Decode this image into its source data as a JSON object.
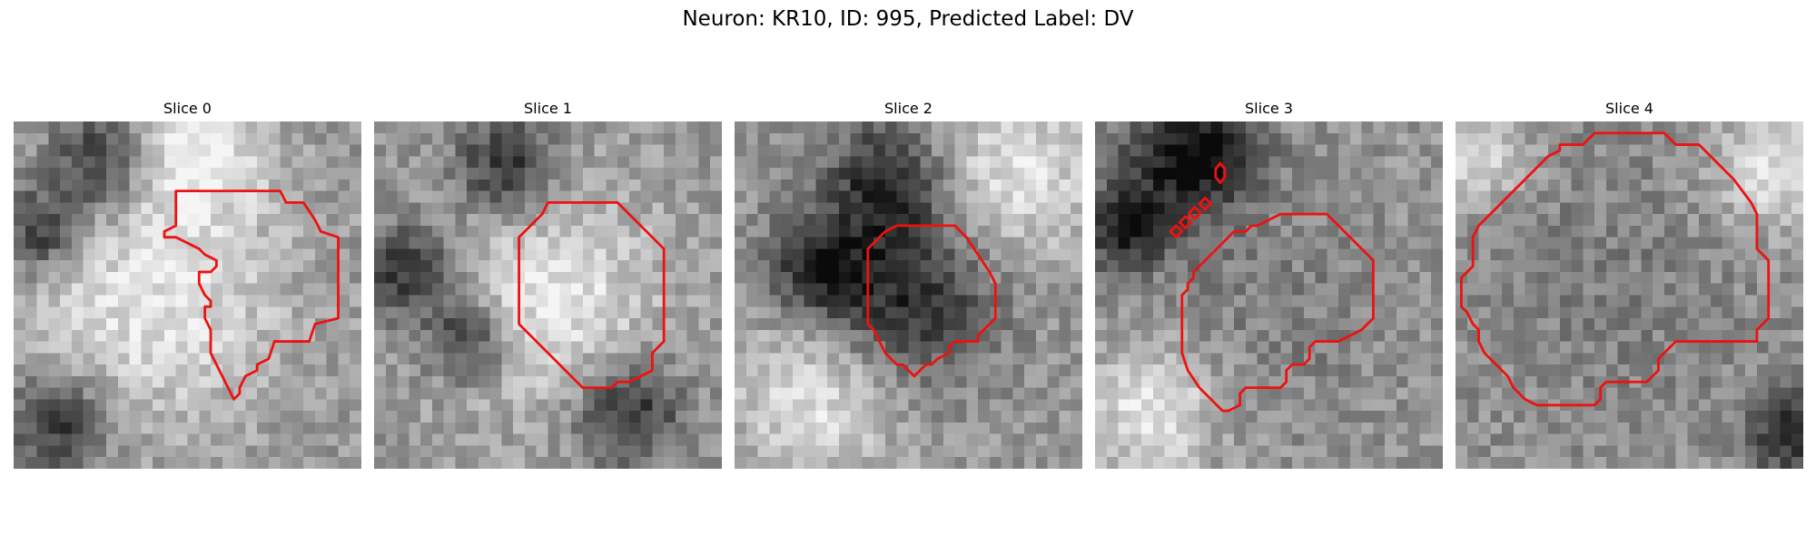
{
  "figure": {
    "title": "Neuron: KR10, ID: 995, Predicted Label: DV"
  },
  "colors": {
    "contour": "#ee1111"
  },
  "panels": [
    {
      "title": "Slice 0",
      "seed": 11,
      "features": [
        {
          "type": "dark",
          "cx": 7.5,
          "cy": 3.5,
          "r": 3.0
        },
        {
          "type": "dark",
          "cx": 2.5,
          "cy": 9.5,
          "r": 2.6
        },
        {
          "type": "dark",
          "cx": 4.0,
          "cy": 26.0,
          "r": 3.0
        },
        {
          "type": "bright",
          "cx": 12.0,
          "cy": 15.0,
          "r": 8.0
        },
        {
          "type": "bright",
          "cx": 16.0,
          "cy": 2.5,
          "r": 4.0
        }
      ],
      "contours": [
        [
          [
            14,
            6
          ],
          [
            23,
            6
          ],
          [
            23.5,
            7
          ],
          [
            25,
            7
          ],
          [
            26,
            8.5
          ],
          [
            26.5,
            9.5
          ],
          [
            28,
            10
          ],
          [
            28,
            17
          ],
          [
            26,
            17.5
          ],
          [
            25.5,
            19
          ],
          [
            22.5,
            19
          ],
          [
            22,
            20.5
          ],
          [
            21,
            21
          ],
          [
            21,
            21.5
          ],
          [
            20,
            22
          ],
          [
            19.5,
            23
          ],
          [
            19.5,
            23.5
          ],
          [
            19,
            24
          ],
          [
            18.5,
            23
          ],
          [
            18,
            22
          ],
          [
            17.5,
            21
          ],
          [
            17,
            20
          ],
          [
            17,
            18
          ],
          [
            16.5,
            17
          ],
          [
            16.5,
            16
          ],
          [
            17,
            16
          ],
          [
            17,
            15.5
          ],
          [
            16.5,
            15
          ],
          [
            16,
            14
          ],
          [
            16,
            13
          ],
          [
            17,
            13
          ],
          [
            17.5,
            12.5
          ],
          [
            17.5,
            12
          ],
          [
            16.5,
            11.5
          ],
          [
            16,
            11
          ],
          [
            14,
            10
          ],
          [
            13,
            10
          ],
          [
            13,
            9.5
          ],
          [
            14,
            9
          ]
        ]
      ]
    },
    {
      "title": "Slice 1",
      "seed": 23,
      "features": [
        {
          "type": "dark",
          "cx": 11.5,
          "cy": 4.0,
          "r": 3.2
        },
        {
          "type": "dark",
          "cx": 3.0,
          "cy": 13.0,
          "r": 3.0
        },
        {
          "type": "dark",
          "cx": 8.0,
          "cy": 19.0,
          "r": 2.5
        },
        {
          "type": "dark",
          "cx": 22.0,
          "cy": 25.0,
          "r": 3.2
        },
        {
          "type": "bright",
          "cx": 15.0,
          "cy": 15.0,
          "r": 7.0
        }
      ],
      "contours": [
        [
          [
            15,
            7
          ],
          [
            21,
            7
          ],
          [
            25,
            11
          ],
          [
            25,
            19
          ],
          [
            24,
            20
          ],
          [
            24,
            21.5
          ],
          [
            23,
            22
          ],
          [
            22,
            22.5
          ],
          [
            21,
            22.5
          ],
          [
            20.5,
            23
          ],
          [
            18,
            23
          ],
          [
            14,
            19
          ],
          [
            12.5,
            17.5
          ],
          [
            12.5,
            10
          ],
          [
            13.5,
            9
          ],
          [
            14,
            8.5
          ],
          [
            14.5,
            8
          ]
        ]
      ]
    },
    {
      "title": "Slice 2",
      "seed": 37,
      "features": [
        {
          "type": "dark",
          "cx": 13.0,
          "cy": 5.0,
          "r": 3.5
        },
        {
          "type": "dark",
          "cx": 7.0,
          "cy": 12.5,
          "r": 3.0
        },
        {
          "type": "dark",
          "cx": 15.0,
          "cy": 15.0,
          "r": 5.2
        },
        {
          "type": "bright",
          "cx": 7.0,
          "cy": 24.0,
          "r": 5.0
        },
        {
          "type": "bright",
          "cx": 24.0,
          "cy": 5.0,
          "r": 5.0
        }
      ],
      "contours": [
        [
          [
            14,
            9
          ],
          [
            19,
            9
          ],
          [
            20,
            10
          ],
          [
            21,
            11.5
          ],
          [
            22,
            13
          ],
          [
            22.5,
            14
          ],
          [
            22.5,
            17
          ],
          [
            22,
            17.5
          ],
          [
            21.5,
            18
          ],
          [
            21,
            18.5
          ],
          [
            21,
            19
          ],
          [
            19,
            19
          ],
          [
            18.5,
            19.5
          ],
          [
            18.5,
            20
          ],
          [
            17.5,
            20.5
          ],
          [
            17,
            21
          ],
          [
            16.5,
            21
          ],
          [
            16,
            21.5
          ],
          [
            15.5,
            22
          ],
          [
            15,
            21.5
          ],
          [
            14.5,
            21
          ],
          [
            14,
            21
          ],
          [
            13.5,
            20.5
          ],
          [
            13,
            20
          ],
          [
            12.5,
            19
          ],
          [
            12,
            18
          ],
          [
            11.5,
            17.5
          ],
          [
            11.5,
            11
          ],
          [
            12,
            10.5
          ],
          [
            12.5,
            10
          ],
          [
            13,
            9.5
          ]
        ]
      ]
    },
    {
      "title": "Slice 3",
      "seed": 41,
      "features": [
        {
          "type": "dark",
          "cx": 6.5,
          "cy": 5.5,
          "r": 4.5
        },
        {
          "type": "dark",
          "cx": 10.5,
          "cy": 2.5,
          "r": 3.0
        },
        {
          "type": "dark",
          "cx": 2.5,
          "cy": 10.0,
          "r": 2.0
        },
        {
          "type": "mid",
          "cx": 16.0,
          "cy": 16.0,
          "r": 7.5
        },
        {
          "type": "bright",
          "cx": 5.0,
          "cy": 25.0,
          "r": 4.0
        }
      ],
      "contours": [
        [
          [
            16,
            8
          ],
          [
            20,
            8
          ],
          [
            20.5,
            8.5
          ],
          [
            21,
            9
          ],
          [
            22,
            10
          ],
          [
            23,
            11
          ],
          [
            24,
            12
          ],
          [
            24,
            17
          ],
          [
            23.5,
            17.5
          ],
          [
            23,
            18
          ],
          [
            22,
            18.5
          ],
          [
            21,
            19
          ],
          [
            19,
            19
          ],
          [
            18.5,
            19.5
          ],
          [
            18.5,
            20.5
          ],
          [
            18,
            21
          ],
          [
            17,
            21
          ],
          [
            16.5,
            21.5
          ],
          [
            16.5,
            22.5
          ],
          [
            16,
            23
          ],
          [
            13,
            23
          ],
          [
            12.5,
            23.5
          ],
          [
            12.5,
            24.5
          ],
          [
            11.5,
            25
          ],
          [
            11,
            25
          ],
          [
            10.5,
            24.5
          ],
          [
            10,
            24
          ],
          [
            9,
            23
          ],
          [
            8,
            21.5
          ],
          [
            7.5,
            20
          ],
          [
            7.5,
            15
          ],
          [
            8,
            14.5
          ],
          [
            8,
            14
          ],
          [
            8.5,
            13.5
          ],
          [
            8.5,
            13
          ],
          [
            9.5,
            12
          ],
          [
            10.5,
            11
          ],
          [
            11.5,
            10
          ],
          [
            12,
            9.5
          ],
          [
            13,
            9.5
          ],
          [
            13.5,
            9
          ],
          [
            14,
            9
          ],
          [
            15,
            8.5
          ]
        ],
        [
          [
            7.0,
            9.0
          ],
          [
            7.5,
            9.5
          ],
          [
            7.0,
            10.0
          ],
          [
            6.5,
            9.5
          ]
        ],
        [
          [
            7.8,
            8.2
          ],
          [
            8.3,
            8.7
          ],
          [
            7.8,
            9.2
          ],
          [
            7.3,
            8.7
          ]
        ],
        [
          [
            8.6,
            7.4
          ],
          [
            9.1,
            7.9
          ],
          [
            8.6,
            8.4
          ],
          [
            8.1,
            7.9
          ]
        ],
        [
          [
            9.5,
            6.6
          ],
          [
            10.0,
            7.1
          ],
          [
            9.5,
            7.6
          ],
          [
            9.0,
            7.1
          ]
        ],
        [
          [
            10.8,
            3.6
          ],
          [
            11.2,
            4.1
          ],
          [
            11.2,
            4.8
          ],
          [
            10.8,
            5.3
          ],
          [
            10.4,
            4.8
          ],
          [
            10.4,
            4.1
          ]
        ]
      ]
    },
    {
      "title": "Slice 4",
      "seed": 53,
      "features": [
        {
          "type": "mid",
          "cx": 14.0,
          "cy": 13.5,
          "r": 11.0
        },
        {
          "type": "bright",
          "cx": 27.5,
          "cy": 4.0,
          "r": 4.0
        },
        {
          "type": "bright",
          "cx": 2.0,
          "cy": 3.0,
          "r": 3.0
        },
        {
          "type": "dark",
          "cx": 29.0,
          "cy": 27.0,
          "r": 2.5
        }
      ],
      "contours": [
        [
          [
            11,
            2
          ],
          [
            12,
            1
          ],
          [
            18,
            1
          ],
          [
            18.5,
            1.5
          ],
          [
            19,
            2
          ],
          [
            21,
            2
          ],
          [
            22,
            3
          ],
          [
            23,
            4
          ],
          [
            24,
            5
          ],
          [
            25.5,
            7
          ],
          [
            26,
            8
          ],
          [
            26,
            11
          ],
          [
            27,
            12
          ],
          [
            27,
            17
          ],
          [
            26.5,
            17.5
          ],
          [
            26,
            18
          ],
          [
            26,
            19
          ],
          [
            19,
            19
          ],
          [
            18.5,
            19.5
          ],
          [
            18,
            20
          ],
          [
            17.5,
            20.5
          ],
          [
            17.5,
            21.5
          ],
          [
            17,
            22
          ],
          [
            16.5,
            22.5
          ],
          [
            13,
            22.5
          ],
          [
            12.5,
            23
          ],
          [
            12.5,
            24
          ],
          [
            12,
            24.5
          ],
          [
            7,
            24.5
          ],
          [
            6,
            24
          ],
          [
            5,
            23
          ],
          [
            4.5,
            22
          ],
          [
            4,
            21.5
          ],
          [
            3.5,
            21
          ],
          [
            3,
            20.5
          ],
          [
            2.5,
            20
          ],
          [
            2,
            19
          ],
          [
            2,
            18
          ],
          [
            1.5,
            17.5
          ],
          [
            1,
            16.5
          ],
          [
            0.5,
            16
          ],
          [
            0.5,
            13.5
          ],
          [
            1,
            13
          ],
          [
            1.5,
            12.5
          ],
          [
            1.5,
            10
          ],
          [
            2,
            9
          ],
          [
            3,
            8
          ],
          [
            4,
            7
          ],
          [
            5,
            6
          ],
          [
            6,
            5
          ],
          [
            7,
            4
          ],
          [
            8,
            3
          ],
          [
            9,
            2.5
          ],
          [
            9,
            2
          ]
        ]
      ]
    }
  ]
}
